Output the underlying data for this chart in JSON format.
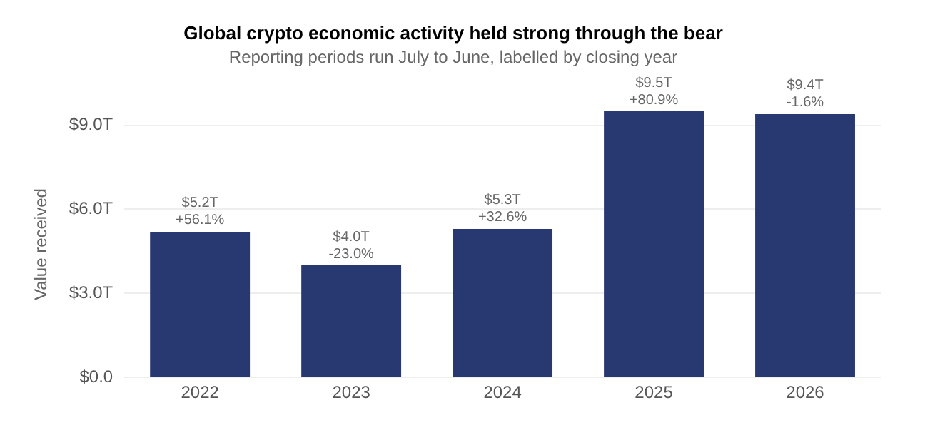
{
  "chart_data": {
    "type": "bar",
    "title": "Global crypto economic activity held strong through the bear",
    "subtitle": "Reporting periods run July to June, labelled by closing year",
    "ylabel": "Value received",
    "categories": [
      "2022",
      "2023",
      "2024",
      "2025",
      "2026"
    ],
    "values": [
      5.2,
      4.0,
      5.3,
      9.5,
      9.4
    ],
    "value_labels": [
      "$5.2T",
      "$4.0T",
      "$5.3T",
      "$9.5T",
      "$9.4T"
    ],
    "annotations": [
      {
        "text": "+56.1%",
        "x": "2022",
        "y": 5.2
      },
      {
        "text": "-23.0%",
        "x": "2023",
        "y": 4.0
      },
      {
        "text": "+32.6%",
        "x": "2024",
        "y": 5.3
      },
      {
        "text": "+80.9%",
        "x": "2025",
        "y": 9.5
      },
      {
        "text": "-1.6%",
        "x": "2026",
        "y": 9.4
      }
    ],
    "color": "#283870",
    "ylim": [
      0,
      9.5
    ],
    "yticks": [
      {
        "value": 0,
        "label": "$0.0"
      },
      {
        "value": 3,
        "label": "$3.0T"
      },
      {
        "value": 6,
        "label": "$6.0T"
      },
      {
        "value": 9,
        "label": "$9.0T"
      }
    ],
    "grid": "y",
    "legend": false
  }
}
